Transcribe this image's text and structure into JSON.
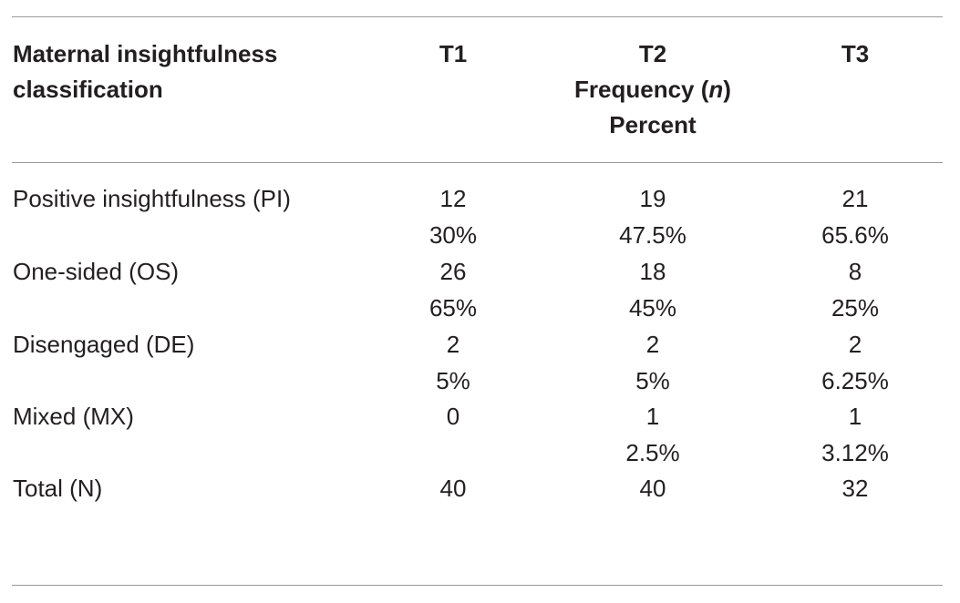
{
  "table": {
    "header": {
      "row_label_line1": "Maternal insightfulness",
      "row_label_line2": "classification",
      "t1": "T1",
      "t2": "T2",
      "t2_sub_pre": "Frequency (",
      "t2_sub_n": "n",
      "t2_sub_post": ")",
      "t2_sub2": "Percent",
      "t3": "T3"
    },
    "rows": [
      {
        "label": "Positive insightfulness (PI)",
        "t1": [
          "12",
          "30%"
        ],
        "t2": [
          "19",
          "47.5%"
        ],
        "t3": [
          "21",
          "65.6%"
        ]
      },
      {
        "label": "One-sided (OS)",
        "t1": [
          "26",
          "65%"
        ],
        "t2": [
          "18",
          "45%"
        ],
        "t3": [
          "8",
          "25%"
        ]
      },
      {
        "label": "Disengaged (DE)",
        "t1": [
          "2",
          "5%"
        ],
        "t2": [
          "2",
          "5%"
        ],
        "t3": [
          "2",
          "6.25%"
        ]
      },
      {
        "label": "Mixed (MX)",
        "t1": [
          "0",
          ""
        ],
        "t2": [
          "1",
          "2.5%"
        ],
        "t3": [
          "1",
          "3.12%"
        ]
      },
      {
        "label": "Total (N)",
        "t1": [
          "40"
        ],
        "t2": [
          "40"
        ],
        "t3": [
          "32"
        ]
      }
    ]
  }
}
